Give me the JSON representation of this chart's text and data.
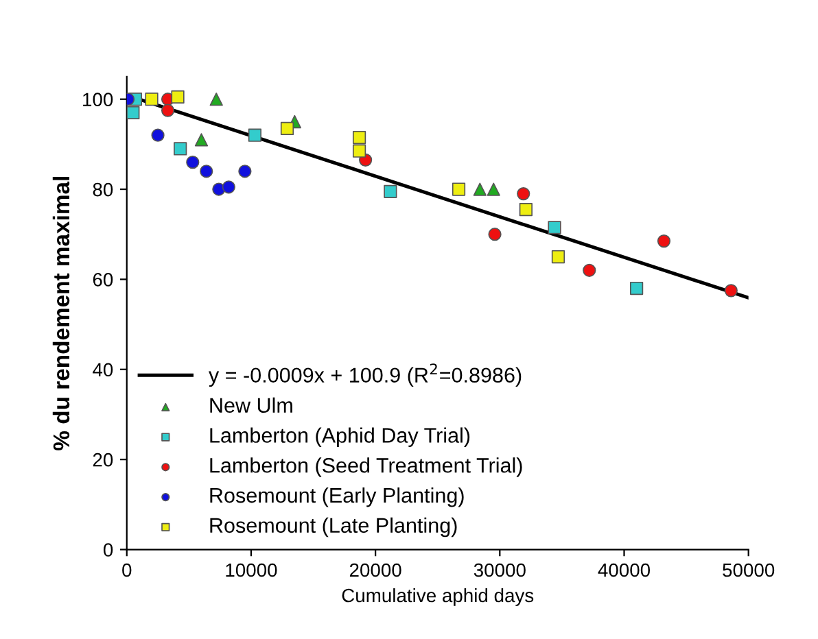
{
  "chart_data": {
    "type": "scatter",
    "xlabel": "Cumulative aphid days",
    "ylabel": "% du rendement maximal",
    "xlim": [
      0,
      50000
    ],
    "ylim": [
      0,
      105
    ],
    "xticks": [
      0,
      10000,
      20000,
      30000,
      40000,
      50000
    ],
    "yticks": [
      0,
      20,
      40,
      60,
      80,
      100
    ],
    "grid": false,
    "legend": "bottom left",
    "series": [
      {
        "name": "y = -0.0009x + 100.9 (R$^{2}$=0.8986)",
        "type": "line",
        "color": "#000000",
        "x": [
          0,
          50000
        ],
        "values": [
          100.9,
          55.9
        ],
        "marker": "none",
        "line_style": "solid"
      },
      {
        "name": "New Ulm",
        "color": "#22aa22",
        "marker": "triangle",
        "x": [
          7200,
          6000,
          13500,
          28400,
          29500
        ],
        "values": [
          100,
          91,
          95,
          80,
          80
        ]
      },
      {
        "name": "Lamberton (Aphid Day Trial)",
        "color": "#33cccc",
        "marker": "square",
        "x": [
          700,
          500,
          4300,
          10300,
          21200,
          34400,
          41000
        ],
        "values": [
          100,
          97,
          89,
          92,
          79.5,
          71.5,
          58
        ]
      },
      {
        "name": "Lamberton (Seed Treatment Trial)",
        "color": "#ee1111",
        "marker": "circle",
        "x": [
          3300,
          3300,
          19200,
          31900,
          29600,
          37200,
          43200,
          48600
        ],
        "values": [
          100,
          97.5,
          86.5,
          79,
          70,
          62,
          68.5,
          57.5
        ]
      },
      {
        "name": "Rosemount (Early Planting)",
        "color": "#1111dd",
        "marker": "circle",
        "x": [
          100,
          2500,
          5300,
          6200,
          6400,
          7400,
          8200,
          9500
        ],
        "values": [
          100,
          92,
          86,
          null,
          84,
          80,
          80.5,
          84
        ]
      },
      {
        "name": "Rosemount (Late Planting)",
        "color": "#eeee11",
        "marker": "square",
        "x": [
          2000,
          4100,
          12900,
          18700,
          18700,
          26700,
          32100,
          34700
        ],
        "values": [
          100,
          100.5,
          93.5,
          91.5,
          88.5,
          80,
          75.5,
          65
        ]
      }
    ]
  }
}
